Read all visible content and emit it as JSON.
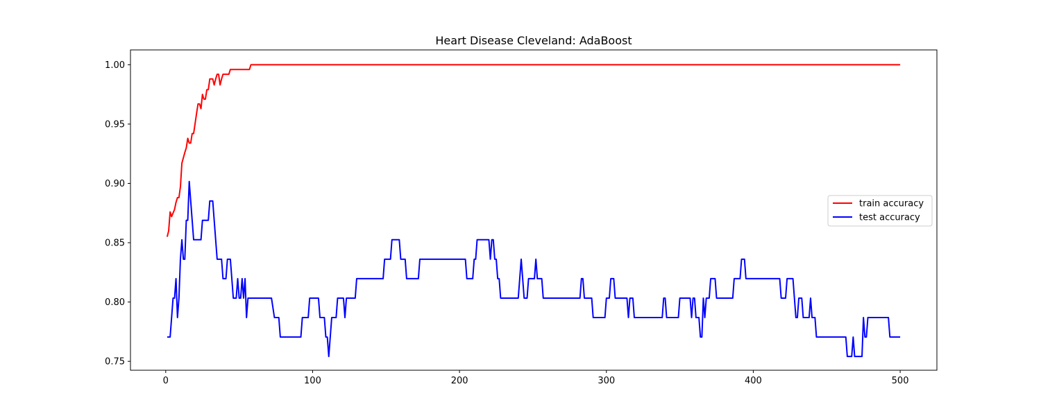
{
  "chart_data": {
    "type": "line",
    "title": "Heart Disease Cleveland: AdaBoost",
    "xlabel": "",
    "ylabel": "",
    "xlim": [
      -24,
      525
    ],
    "ylim": [
      0.7425,
      1.0125
    ],
    "xticks": [
      0,
      100,
      200,
      300,
      400,
      500
    ],
    "yticks": [
      0.75,
      0.8,
      0.85,
      0.9,
      0.95,
      1.0
    ],
    "xtick_labels": [
      "0",
      "100",
      "200",
      "300",
      "400",
      "500"
    ],
    "ytick_labels": [
      "0.75",
      "0.80",
      "0.85",
      "0.90",
      "0.95",
      "1.00"
    ],
    "grid": false,
    "legend_position": "center-right",
    "series": [
      {
        "name": "train accuracy",
        "color": "#ff0000",
        "points": [
          [
            1,
            0.855
          ],
          [
            2,
            0.86
          ],
          [
            3,
            0.876
          ],
          [
            4,
            0.872
          ],
          [
            6,
            0.878
          ],
          [
            7,
            0.884
          ],
          [
            8,
            0.888
          ],
          [
            9,
            0.888
          ],
          [
            10,
            0.897
          ],
          [
            11,
            0.917
          ],
          [
            13,
            0.926
          ],
          [
            14,
            0.93
          ],
          [
            15,
            0.938
          ],
          [
            16,
            0.934
          ],
          [
            17,
            0.934
          ],
          [
            18,
            0.942
          ],
          [
            19,
            0.942
          ],
          [
            21,
            0.959
          ],
          [
            22,
            0.967
          ],
          [
            23,
            0.967
          ],
          [
            24,
            0.963
          ],
          [
            25,
            0.975
          ],
          [
            26,
            0.971
          ],
          [
            27,
            0.971
          ],
          [
            28,
            0.979
          ],
          [
            29,
            0.979
          ],
          [
            30,
            0.988
          ],
          [
            32,
            0.988
          ],
          [
            33,
            0.983
          ],
          [
            34,
            0.988
          ],
          [
            35,
            0.992
          ],
          [
            36,
            0.992
          ],
          [
            37,
            0.983
          ],
          [
            38,
            0.988
          ],
          [
            39,
            0.992
          ],
          [
            43,
            0.992
          ],
          [
            44,
            0.996
          ],
          [
            57,
            0.996
          ],
          [
            58,
            1.0
          ],
          [
            500,
            1.0
          ]
        ]
      },
      {
        "name": "test accuracy",
        "color": "#0000ff",
        "points": [
          [
            1,
            0.7705
          ],
          [
            3,
            0.7705
          ],
          [
            5,
            0.8033
          ],
          [
            6,
            0.8033
          ],
          [
            7,
            0.8197
          ],
          [
            8,
            0.7869
          ],
          [
            9,
            0.8033
          ],
          [
            10,
            0.8361
          ],
          [
            11,
            0.8525
          ],
          [
            12,
            0.8361
          ],
          [
            13,
            0.8361
          ],
          [
            14,
            0.8689
          ],
          [
            15,
            0.8689
          ],
          [
            16,
            0.9016
          ],
          [
            18,
            0.8689
          ],
          [
            19,
            0.8525
          ],
          [
            24,
            0.8525
          ],
          [
            25,
            0.8689
          ],
          [
            29,
            0.8689
          ],
          [
            30,
            0.8852
          ],
          [
            32,
            0.8852
          ],
          [
            34,
            0.8525
          ],
          [
            35,
            0.8361
          ],
          [
            38,
            0.8361
          ],
          [
            39,
            0.8197
          ],
          [
            41,
            0.8197
          ],
          [
            42,
            0.8361
          ],
          [
            44,
            0.8361
          ],
          [
            46,
            0.8033
          ],
          [
            48,
            0.8033
          ],
          [
            49,
            0.8197
          ],
          [
            50,
            0.8033
          ],
          [
            51,
            0.8033
          ],
          [
            52,
            0.8197
          ],
          [
            53,
            0.8033
          ],
          [
            54,
            0.8197
          ],
          [
            55,
            0.7869
          ],
          [
            56,
            0.8033
          ],
          [
            72,
            0.8033
          ],
          [
            74,
            0.7869
          ],
          [
            77,
            0.7869
          ],
          [
            78,
            0.7705
          ],
          [
            92,
            0.7705
          ],
          [
            93,
            0.7869
          ],
          [
            97,
            0.7869
          ],
          [
            98,
            0.8033
          ],
          [
            104,
            0.8033
          ],
          [
            105,
            0.7869
          ],
          [
            108,
            0.7869
          ],
          [
            109,
            0.7705
          ],
          [
            110,
            0.7705
          ],
          [
            111,
            0.7541
          ],
          [
            113,
            0.7869
          ],
          [
            116,
            0.7869
          ],
          [
            117,
            0.8033
          ],
          [
            121,
            0.8033
          ],
          [
            122,
            0.7869
          ],
          [
            123,
            0.8033
          ],
          [
            129,
            0.8033
          ],
          [
            130,
            0.8197
          ],
          [
            148,
            0.8197
          ],
          [
            149,
            0.8361
          ],
          [
            153,
            0.8361
          ],
          [
            154,
            0.8525
          ],
          [
            159,
            0.8525
          ],
          [
            160,
            0.8361
          ],
          [
            163,
            0.8361
          ],
          [
            164,
            0.8197
          ],
          [
            172,
            0.8197
          ],
          [
            173,
            0.8361
          ],
          [
            204,
            0.8361
          ],
          [
            205,
            0.8197
          ],
          [
            209,
            0.8197
          ],
          [
            210,
            0.8361
          ],
          [
            211,
            0.8361
          ],
          [
            212,
            0.8525
          ],
          [
            220,
            0.8525
          ],
          [
            221,
            0.8361
          ],
          [
            222,
            0.8525
          ],
          [
            223,
            0.8525
          ],
          [
            224,
            0.8361
          ],
          [
            225,
            0.8361
          ],
          [
            226,
            0.8197
          ],
          [
            227,
            0.8197
          ],
          [
            228,
            0.8033
          ],
          [
            240,
            0.8033
          ],
          [
            241,
            0.8197
          ],
          [
            242,
            0.8361
          ],
          [
            243,
            0.8197
          ],
          [
            244,
            0.8033
          ],
          [
            246,
            0.8033
          ],
          [
            247,
            0.8197
          ],
          [
            251,
            0.8197
          ],
          [
            252,
            0.8361
          ],
          [
            253,
            0.8197
          ],
          [
            256,
            0.8197
          ],
          [
            257,
            0.8033
          ],
          [
            282,
            0.8033
          ],
          [
            283,
            0.8197
          ],
          [
            284,
            0.8197
          ],
          [
            285,
            0.8033
          ],
          [
            290,
            0.8033
          ],
          [
            291,
            0.7869
          ],
          [
            299,
            0.7869
          ],
          [
            300,
            0.8033
          ],
          [
            302,
            0.8033
          ],
          [
            303,
            0.8197
          ],
          [
            305,
            0.8197
          ],
          [
            306,
            0.8033
          ],
          [
            314,
            0.8033
          ],
          [
            315,
            0.7869
          ],
          [
            316,
            0.8033
          ],
          [
            318,
            0.8033
          ],
          [
            319,
            0.7869
          ],
          [
            338,
            0.7869
          ],
          [
            339,
            0.8033
          ],
          [
            340,
            0.8033
          ],
          [
            341,
            0.7869
          ],
          [
            349,
            0.7869
          ],
          [
            350,
            0.8033
          ],
          [
            357,
            0.8033
          ],
          [
            358,
            0.7869
          ],
          [
            359,
            0.8033
          ],
          [
            360,
            0.8033
          ],
          [
            361,
            0.7869
          ],
          [
            363,
            0.7869
          ],
          [
            364,
            0.7705
          ],
          [
            365,
            0.7705
          ],
          [
            366,
            0.8033
          ],
          [
            367,
            0.7869
          ],
          [
            368,
            0.8033
          ],
          [
            370,
            0.8033
          ],
          [
            371,
            0.8197
          ],
          [
            374,
            0.8197
          ],
          [
            375,
            0.8033
          ],
          [
            386,
            0.8033
          ],
          [
            387,
            0.8197
          ],
          [
            391,
            0.8197
          ],
          [
            392,
            0.8361
          ],
          [
            394,
            0.8361
          ],
          [
            395,
            0.8197
          ],
          [
            418,
            0.8197
          ],
          [
            419,
            0.8033
          ],
          [
            422,
            0.8033
          ],
          [
            423,
            0.8197
          ],
          [
            427,
            0.8197
          ],
          [
            428,
            0.8033
          ],
          [
            429,
            0.7869
          ],
          [
            430,
            0.7869
          ],
          [
            431,
            0.8033
          ],
          [
            433,
            0.8033
          ],
          [
            434,
            0.7869
          ],
          [
            438,
            0.7869
          ],
          [
            439,
            0.8033
          ],
          [
            440,
            0.7869
          ],
          [
            442,
            0.7869
          ],
          [
            443,
            0.7705
          ],
          [
            463,
            0.7705
          ],
          [
            464,
            0.7541
          ],
          [
            467,
            0.7541
          ],
          [
            468,
            0.7705
          ],
          [
            469,
            0.7541
          ],
          [
            474,
            0.7541
          ],
          [
            475,
            0.7869
          ],
          [
            476,
            0.7705
          ],
          [
            477,
            0.7705
          ],
          [
            478,
            0.7869
          ],
          [
            492,
            0.7869
          ],
          [
            493,
            0.7705
          ],
          [
            500,
            0.7705
          ]
        ]
      }
    ]
  }
}
